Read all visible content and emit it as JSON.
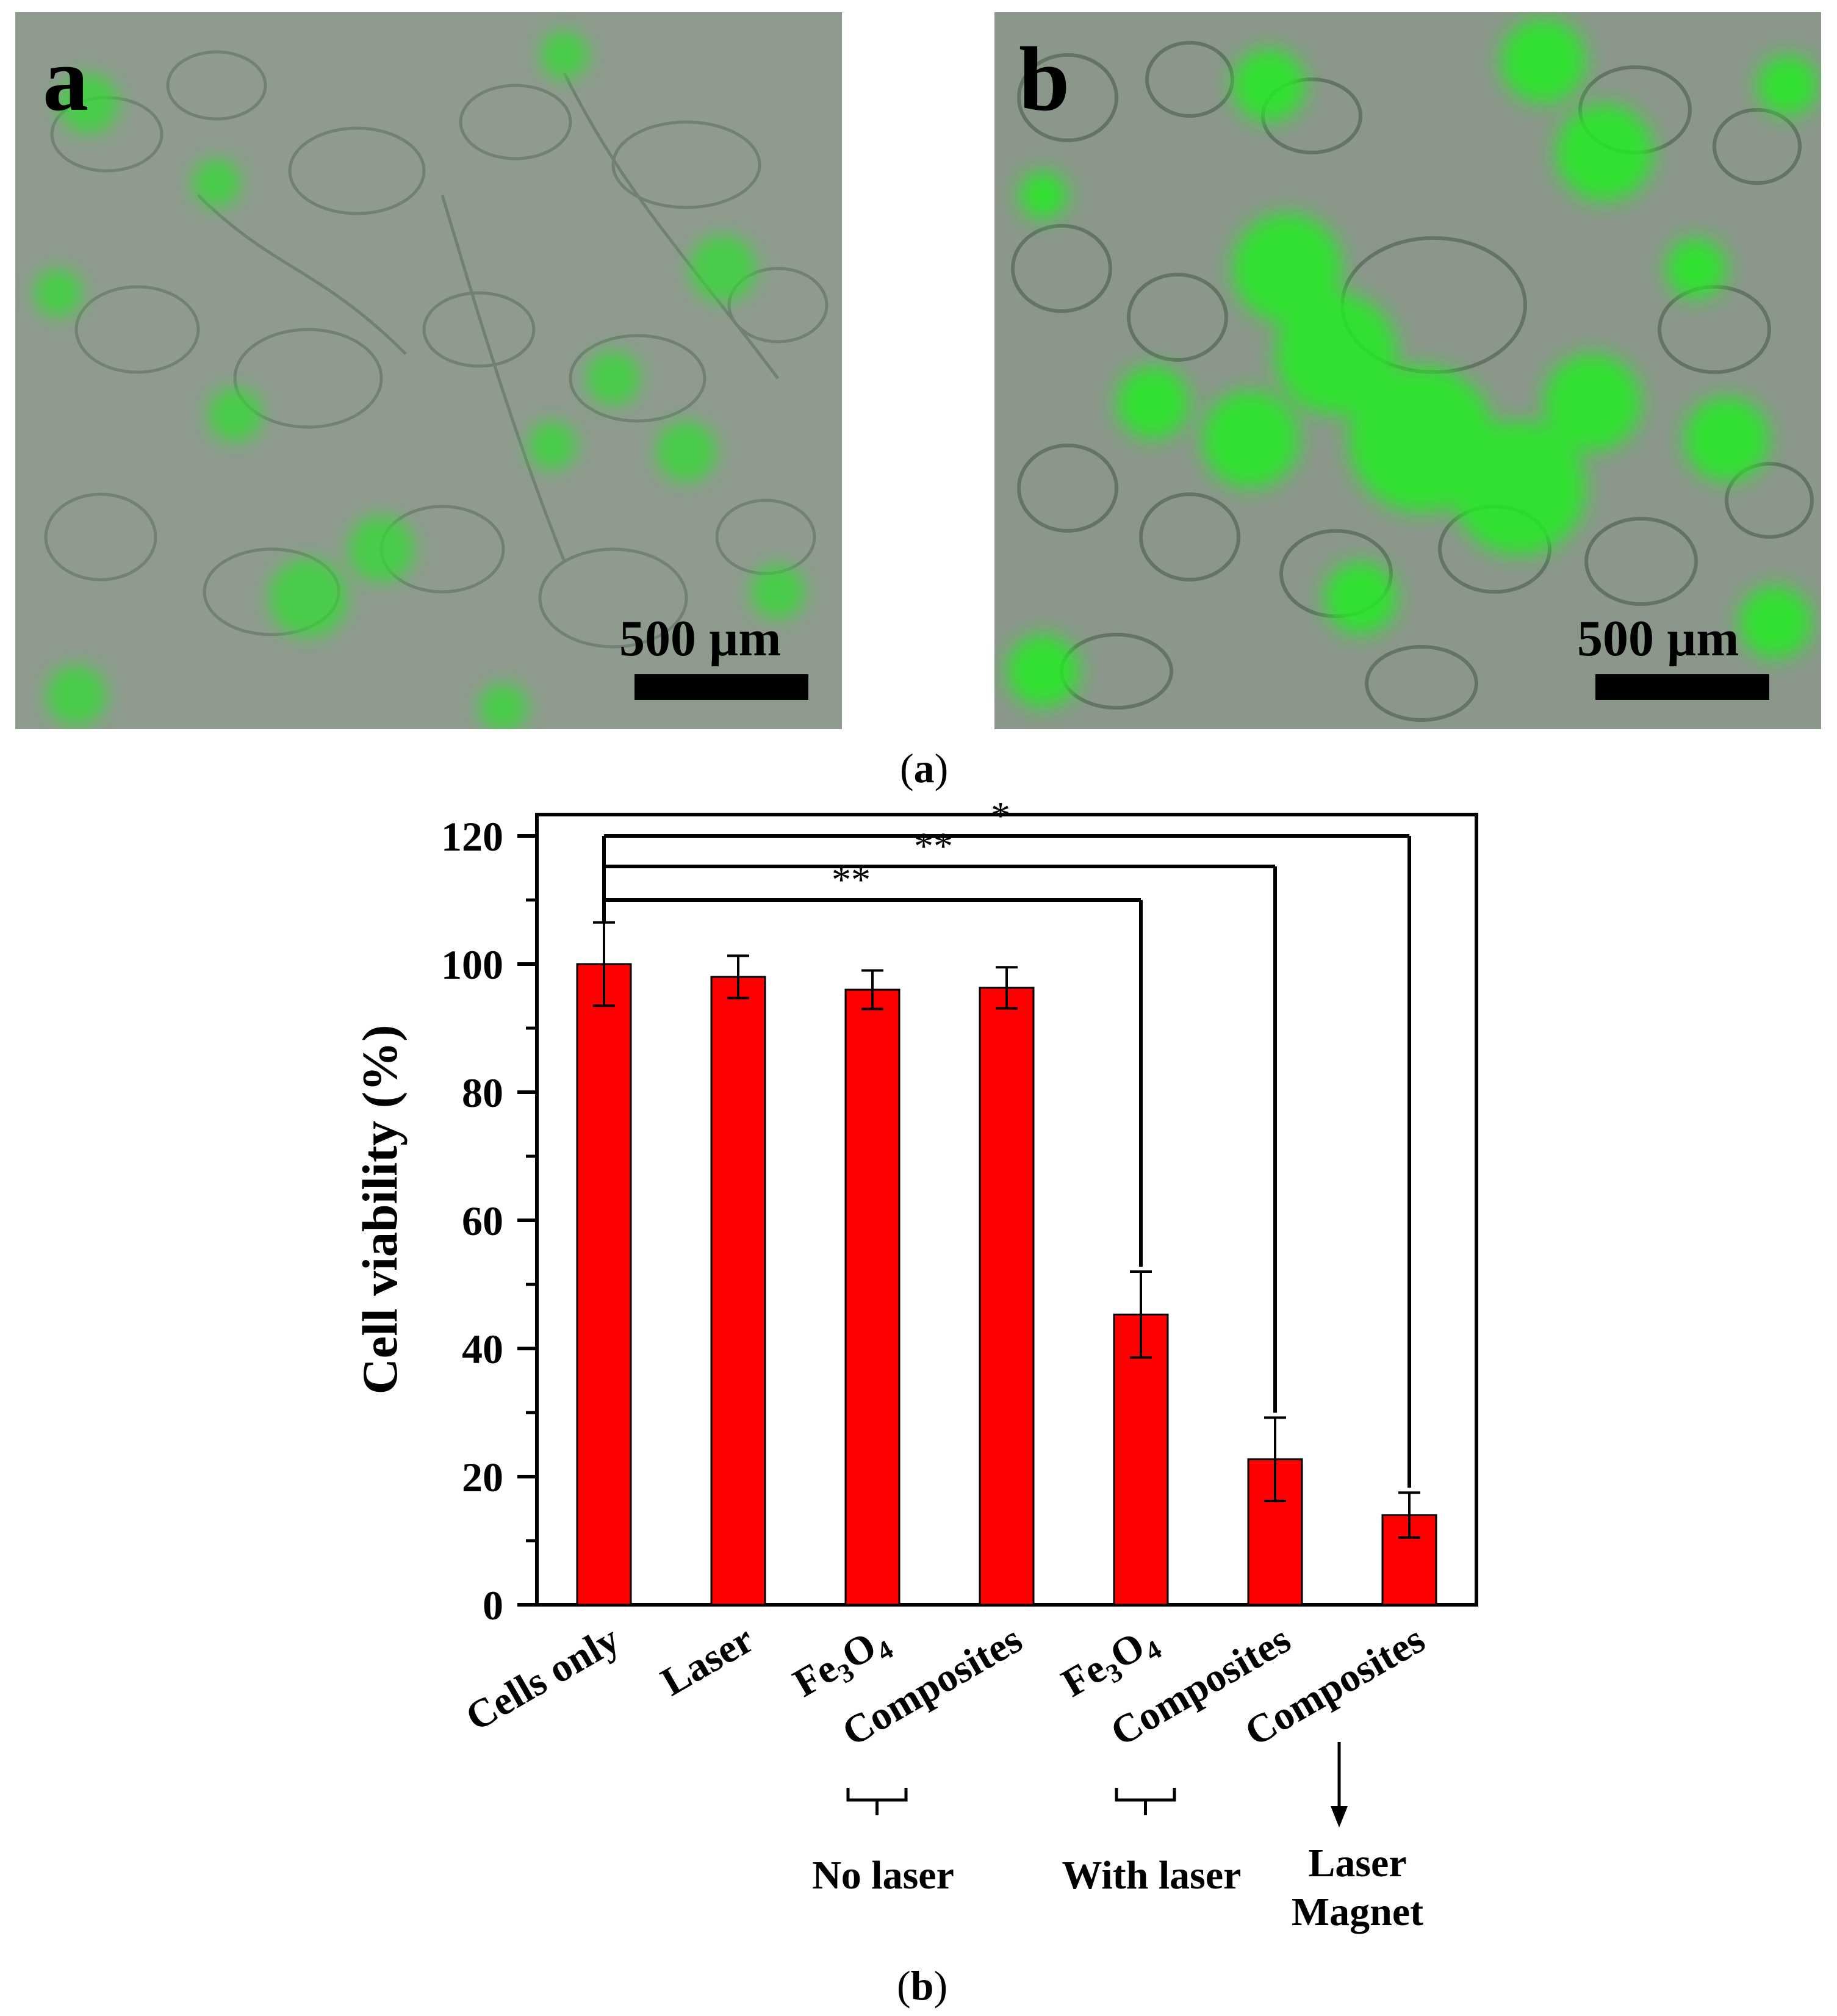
{
  "panels": [
    {
      "letter": "a",
      "scale_label": "500 µm"
    },
    {
      "letter": "b",
      "scale_label": "500 µm"
    }
  ],
  "captions": {
    "top": "a",
    "bottom": "b"
  },
  "colors": {
    "bar": "#ff0000",
    "fluorescence": "#22dd22",
    "cells": "#8a9a8a"
  },
  "chart_data": {
    "type": "bar",
    "ylabel": "Cell viability (%)",
    "xlabel": "",
    "ylim": [
      0,
      120
    ],
    "yticks": [
      0,
      20,
      40,
      60,
      80,
      100,
      120
    ],
    "categories": [
      "Cells only",
      "Laser",
      "Fe3O4",
      "Composites",
      "Fe3O4",
      "Composites",
      "Composites"
    ],
    "values": [
      100,
      98,
      96,
      96.3,
      45.3,
      22.7,
      14
    ],
    "errors": [
      6.5,
      3.3,
      3,
      3.2,
      6.7,
      6.5,
      3.5
    ],
    "significance": [
      {
        "from": 0,
        "to": 4,
        "label": "**"
      },
      {
        "from": 0,
        "to": 5,
        "label": "**"
      },
      {
        "from": 0,
        "to": 6,
        "label": "*"
      }
    ],
    "groups": [
      {
        "label": "No laser",
        "bars": [
          2,
          3
        ]
      },
      {
        "label": "With laser",
        "bars": [
          4,
          5
        ]
      }
    ],
    "annotation": {
      "bar": 6,
      "lines": [
        "Laser",
        "Magnet"
      ]
    },
    "grid": false,
    "legend": "none"
  }
}
